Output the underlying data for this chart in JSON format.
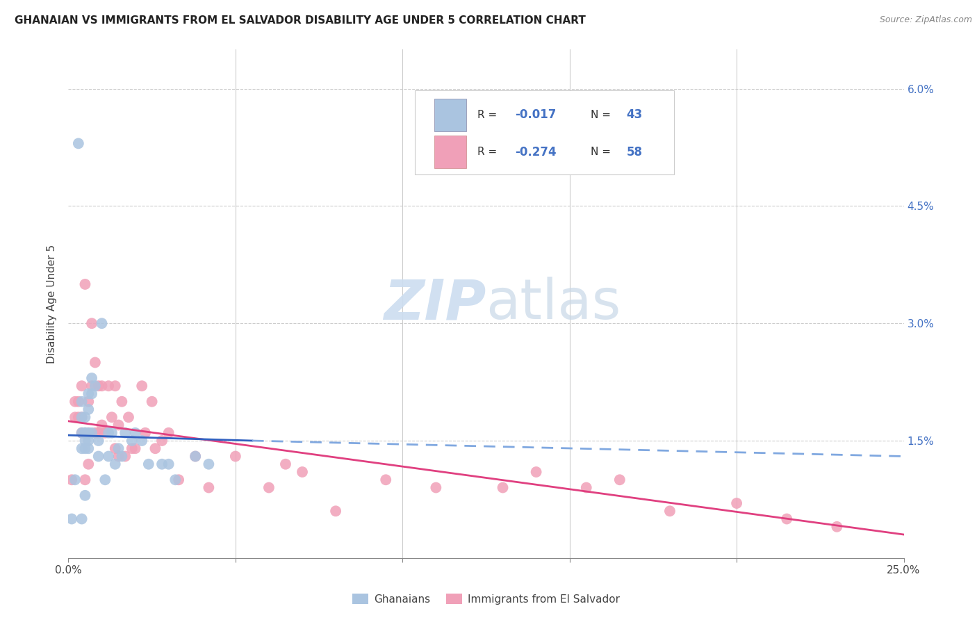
{
  "title": "GHANAIAN VS IMMIGRANTS FROM EL SALVADOR DISABILITY AGE UNDER 5 CORRELATION CHART",
  "source": "Source: ZipAtlas.com",
  "ylabel": "Disability Age Under 5",
  "xlim": [
    0.0,
    0.25
  ],
  "ylim": [
    0.0,
    0.065
  ],
  "yticks": [
    0.0,
    0.015,
    0.03,
    0.045,
    0.06
  ],
  "right_ytick_labels": [
    "",
    "1.5%",
    "3.0%",
    "4.5%",
    "6.0%"
  ],
  "ghanaian_color": "#aac4e0",
  "salvador_color": "#f0a0b8",
  "trend_blue_solid_color": "#3060c0",
  "trend_blue_dash_color": "#80a8e0",
  "trend_pink_color": "#e04080",
  "watermark_color": "#ccddf0",
  "ghanaian_x": [
    0.001,
    0.002,
    0.003,
    0.004,
    0.004,
    0.004,
    0.004,
    0.004,
    0.005,
    0.005,
    0.005,
    0.005,
    0.005,
    0.005,
    0.006,
    0.006,
    0.006,
    0.006,
    0.006,
    0.007,
    0.007,
    0.007,
    0.008,
    0.009,
    0.009,
    0.01,
    0.011,
    0.012,
    0.012,
    0.013,
    0.014,
    0.015,
    0.016,
    0.017,
    0.019,
    0.02,
    0.022,
    0.024,
    0.028,
    0.03,
    0.032,
    0.038,
    0.042
  ],
  "ghanaian_y": [
    0.005,
    0.01,
    0.053,
    0.02,
    0.018,
    0.016,
    0.014,
    0.005,
    0.018,
    0.016,
    0.016,
    0.015,
    0.014,
    0.008,
    0.021,
    0.019,
    0.016,
    0.015,
    0.014,
    0.021,
    0.023,
    0.016,
    0.022,
    0.015,
    0.013,
    0.03,
    0.01,
    0.016,
    0.013,
    0.016,
    0.012,
    0.014,
    0.013,
    0.016,
    0.015,
    0.016,
    0.015,
    0.012,
    0.012,
    0.012,
    0.01,
    0.013,
    0.012
  ],
  "salvador_x": [
    0.001,
    0.002,
    0.002,
    0.003,
    0.003,
    0.004,
    0.004,
    0.004,
    0.005,
    0.005,
    0.005,
    0.006,
    0.006,
    0.006,
    0.007,
    0.007,
    0.008,
    0.008,
    0.009,
    0.009,
    0.01,
    0.01,
    0.011,
    0.012,
    0.013,
    0.014,
    0.014,
    0.015,
    0.015,
    0.016,
    0.017,
    0.018,
    0.019,
    0.02,
    0.022,
    0.023,
    0.025,
    0.026,
    0.028,
    0.03,
    0.033,
    0.038,
    0.042,
    0.05,
    0.06,
    0.065,
    0.07,
    0.08,
    0.095,
    0.11,
    0.13,
    0.14,
    0.155,
    0.165,
    0.18,
    0.2,
    0.215,
    0.23
  ],
  "salvador_y": [
    0.01,
    0.02,
    0.018,
    0.02,
    0.018,
    0.022,
    0.018,
    0.016,
    0.035,
    0.016,
    0.01,
    0.02,
    0.016,
    0.012,
    0.03,
    0.022,
    0.025,
    0.016,
    0.022,
    0.016,
    0.022,
    0.017,
    0.016,
    0.022,
    0.018,
    0.022,
    0.014,
    0.017,
    0.013,
    0.02,
    0.013,
    0.018,
    0.014,
    0.014,
    0.022,
    0.016,
    0.02,
    0.014,
    0.015,
    0.016,
    0.01,
    0.013,
    0.009,
    0.013,
    0.009,
    0.012,
    0.011,
    0.006,
    0.01,
    0.009,
    0.009,
    0.011,
    0.009,
    0.01,
    0.006,
    0.007,
    0.005,
    0.004
  ],
  "ghanaian_trend_x": [
    0.0,
    0.055,
    0.055,
    0.25
  ],
  "ghanaian_trend_y_start": 0.0155,
  "ghanaian_trend_y_mid": 0.0148,
  "ghanaian_trend_y_end": 0.0128,
  "salvador_trend_y_start": 0.0175,
  "salvador_trend_y_end": 0.004,
  "legend_ghanaian_R": "R = -0.017",
  "legend_ghanaian_N": "N = 43",
  "legend_salvador_R": "R = -0.274",
  "legend_salvador_N": "N = 58"
}
